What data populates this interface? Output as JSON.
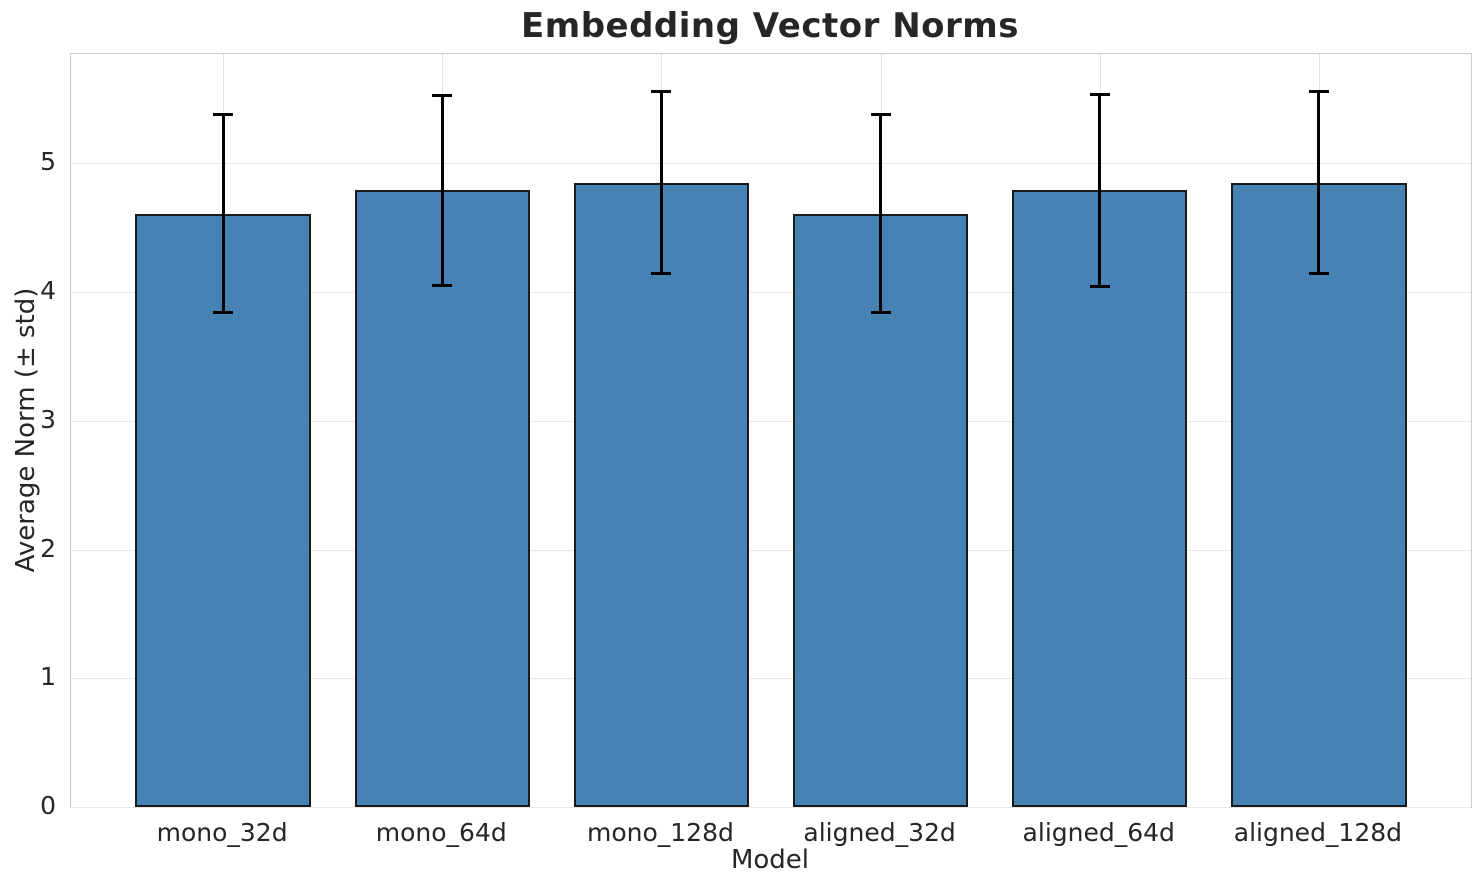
{
  "chart_data": {
    "type": "bar",
    "title": "Embedding Vector Norms",
    "xlabel": "Model",
    "ylabel": "Average Norm (± std)",
    "categories": [
      "mono_32d",
      "mono_64d",
      "mono_128d",
      "aligned_32d",
      "aligned_64d",
      "aligned_128d"
    ],
    "values": [
      4.61,
      4.79,
      4.85,
      4.61,
      4.79,
      4.85
    ],
    "errors": [
      0.78,
      0.75,
      0.72,
      0.78,
      0.76,
      0.72
    ],
    "yticks": [
      0,
      1,
      2,
      3,
      4,
      5
    ],
    "ylim": [
      0,
      5.85
    ],
    "grid": true,
    "legend": "none",
    "colors": {
      "bar_fill": "#4682b4",
      "bar_edge": "#1a1a1a",
      "error_bar": "#000000",
      "grid_line": "#e8e8e8",
      "spine": "#cccccc",
      "text": "#262626",
      "background": "#ffffff"
    }
  }
}
